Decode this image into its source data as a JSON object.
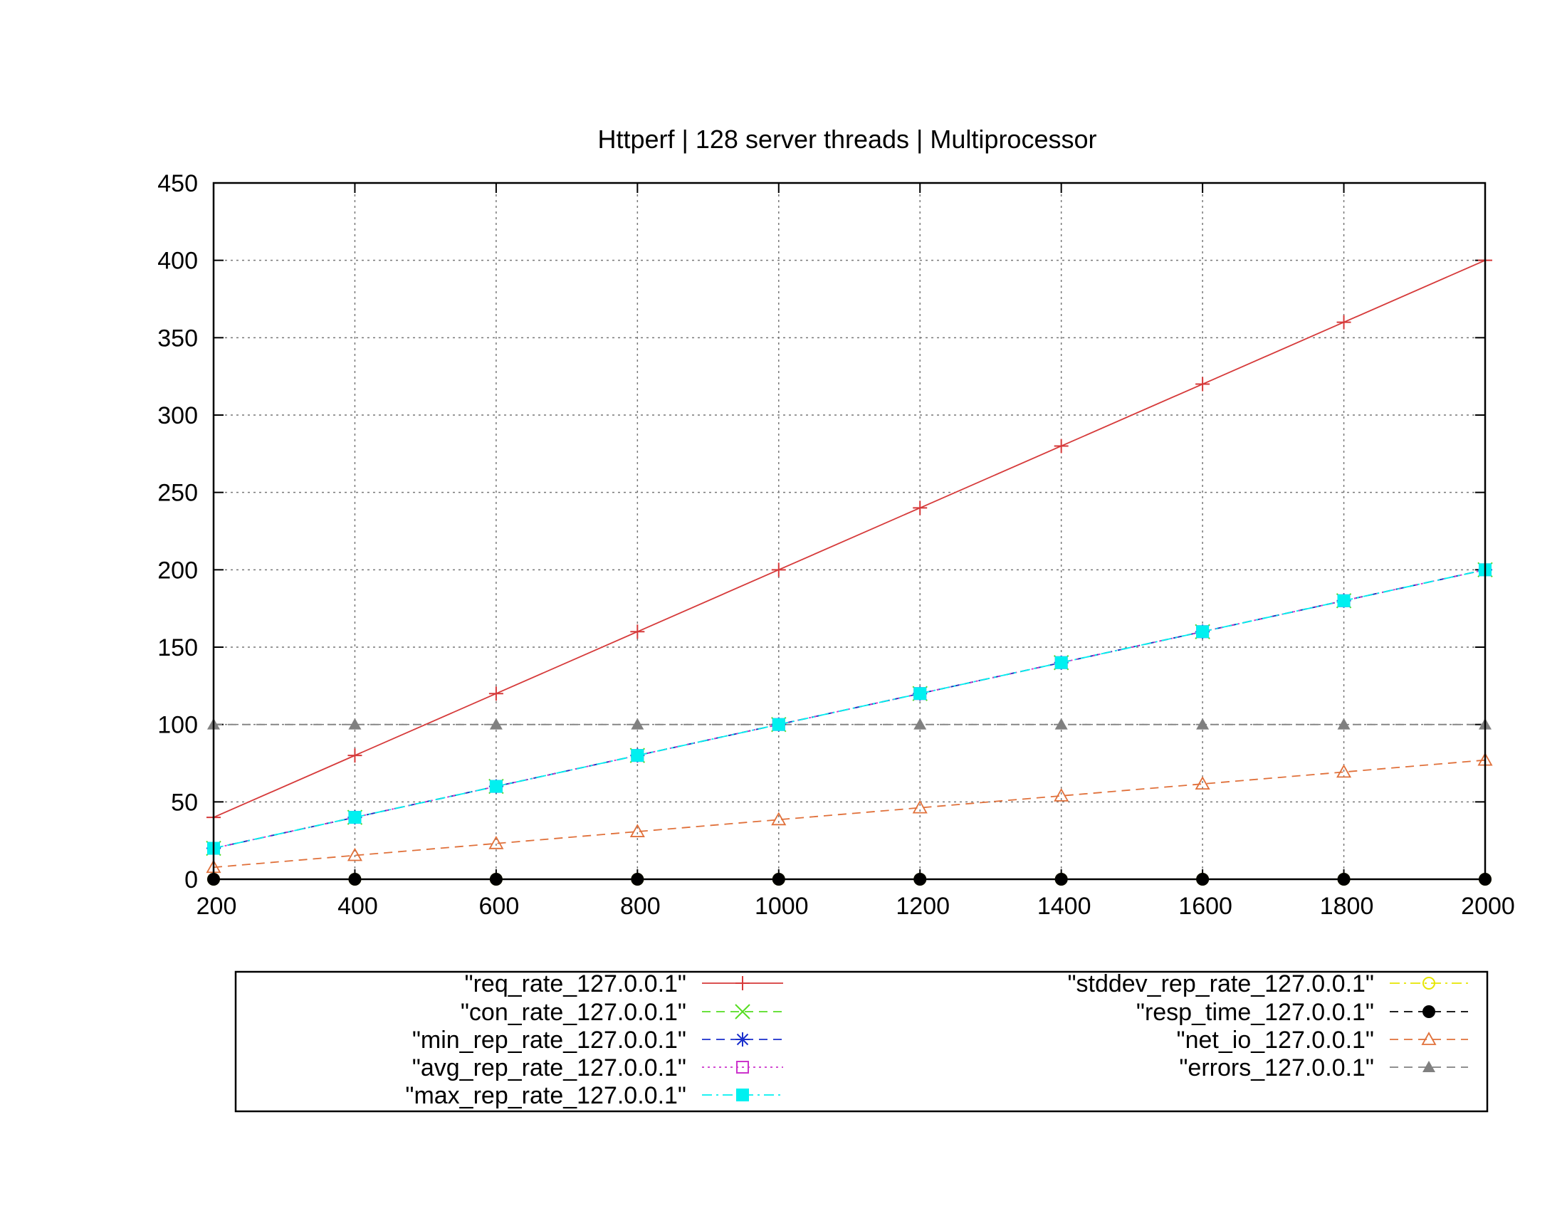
{
  "chart_data": {
    "type": "line",
    "title": "Httperf | 128 server threads | Multiprocessor",
    "xlabel": "",
    "ylabel": "",
    "xlim": [
      200,
      2000
    ],
    "ylim": [
      0,
      450
    ],
    "xticks": [
      200,
      400,
      600,
      800,
      1000,
      1200,
      1400,
      1600,
      1800,
      2000
    ],
    "yticks": [
      0,
      50,
      100,
      150,
      200,
      250,
      300,
      350,
      400,
      450
    ],
    "grid": true,
    "legend_position": "bottom",
    "x": [
      200,
      400,
      600,
      800,
      1000,
      1200,
      1400,
      1600,
      1800,
      2000
    ],
    "series": [
      {
        "name": "\"req_rate_127.0.0.1\"",
        "color": "#d63a3a",
        "marker": "plus",
        "dash": "solid",
        "values": [
          40,
          80,
          120,
          160,
          200,
          240,
          280,
          320,
          360,
          400
        ]
      },
      {
        "name": "\"con_rate_127.0.0.1\"",
        "color": "#55dd22",
        "marker": "cross",
        "dash": "dashed",
        "values": [
          20,
          40,
          60,
          80,
          100,
          120,
          140,
          160,
          180,
          200
        ]
      },
      {
        "name": "\"min_rep_rate_127.0.0.1\"",
        "color": "#1a2fcc",
        "marker": "star",
        "dash": "dashed",
        "values": [
          20,
          40,
          60,
          80,
          100,
          120,
          140,
          160,
          180,
          200
        ]
      },
      {
        "name": "\"avg_rep_rate_127.0.0.1\"",
        "color": "#cc33cc",
        "marker": "open-square",
        "dash": "dotted",
        "values": [
          20,
          40,
          60,
          80,
          100,
          120,
          140,
          160,
          180,
          200
        ]
      },
      {
        "name": "\"max_rep_rate_127.0.0.1\"",
        "color": "#00f0f0",
        "marker": "filled-square",
        "dash": "dashdot",
        "values": [
          20,
          40,
          60,
          80,
          100,
          120,
          140,
          160,
          180,
          200
        ]
      },
      {
        "name": "\"stddev_rep_rate_127.0.0.1\"",
        "color": "#e6e600",
        "marker": "open-circle",
        "dash": "dashdot",
        "values": [
          0,
          0,
          0,
          0,
          0,
          0,
          0,
          0,
          0,
          0
        ]
      },
      {
        "name": "\"resp_time_127.0.0.1\"",
        "color": "#000000",
        "marker": "filled-circle",
        "dash": "dashed",
        "values": [
          0,
          0,
          0,
          0,
          0,
          0,
          0,
          0,
          0,
          0
        ]
      },
      {
        "name": "\"net_io_127.0.0.1\"",
        "color": "#e0703a",
        "marker": "open-triangle",
        "dash": "dashed",
        "values": [
          7.7,
          15.4,
          23.1,
          30.8,
          38.5,
          46.2,
          53.9,
          61.6,
          69.3,
          77
        ]
      },
      {
        "name": "\"errors_127.0.0.1\"",
        "color": "#808080",
        "marker": "filled-triangle",
        "dash": "dashed",
        "values": [
          100,
          100,
          100,
          100,
          100,
          100,
          100,
          100,
          100,
          100
        ]
      }
    ]
  }
}
